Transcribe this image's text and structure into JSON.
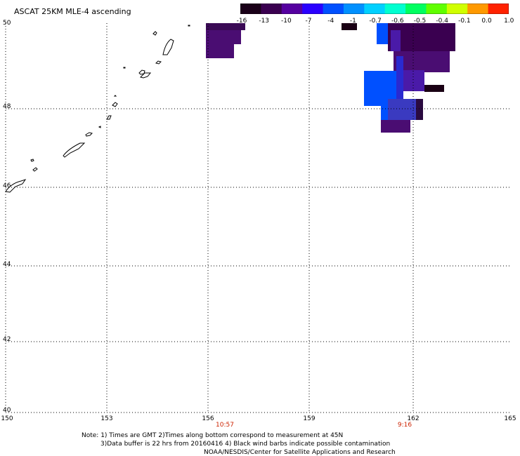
{
  "title": "ASCAT 25KM MLE-4 ascending",
  "colorbar": {
    "labels": [
      "-16",
      "-13",
      "-10",
      "-7",
      "-4",
      "-1",
      "-0.7",
      "-0.6",
      "-0.5",
      "-0.4",
      "-0.1",
      "0.0",
      "1.0"
    ],
    "colors": [
      "#1a0018",
      "#3a0050",
      "#5500a0",
      "#2a00ff",
      "#0050ff",
      "#0090ff",
      "#00d0ff",
      "#00ffd0",
      "#00ff60",
      "#60ff00",
      "#d0ff00",
      "#ff9900",
      "#ff2200"
    ]
  },
  "axes": {
    "lat_labels": [
      "50",
      "48",
      "46",
      "44",
      "42",
      "40"
    ],
    "lon_labels": [
      "150",
      "153",
      "156",
      "159",
      "162",
      "165"
    ],
    "time_labels": [
      "10:57",
      "9:16"
    ]
  },
  "notes": {
    "line1": "Note: 1) Times are GMT 2)Times along bottom correspond to measurement at 45N",
    "line2": "3)Data buffer is 22 hrs from 20160416 4) Black wind barbs indicate possible contamination",
    "line3": "NOAA/NESDIS/Center for Satellite Applications and Research"
  },
  "colors": {
    "purple_dark": "#3a0050",
    "purple": "#5a0d8a",
    "violet": "#4a1aa8",
    "blue": "#0050ff",
    "blue_mid": "#1e3cff",
    "black": "#1a0014",
    "time_red": "#cc2200"
  }
}
